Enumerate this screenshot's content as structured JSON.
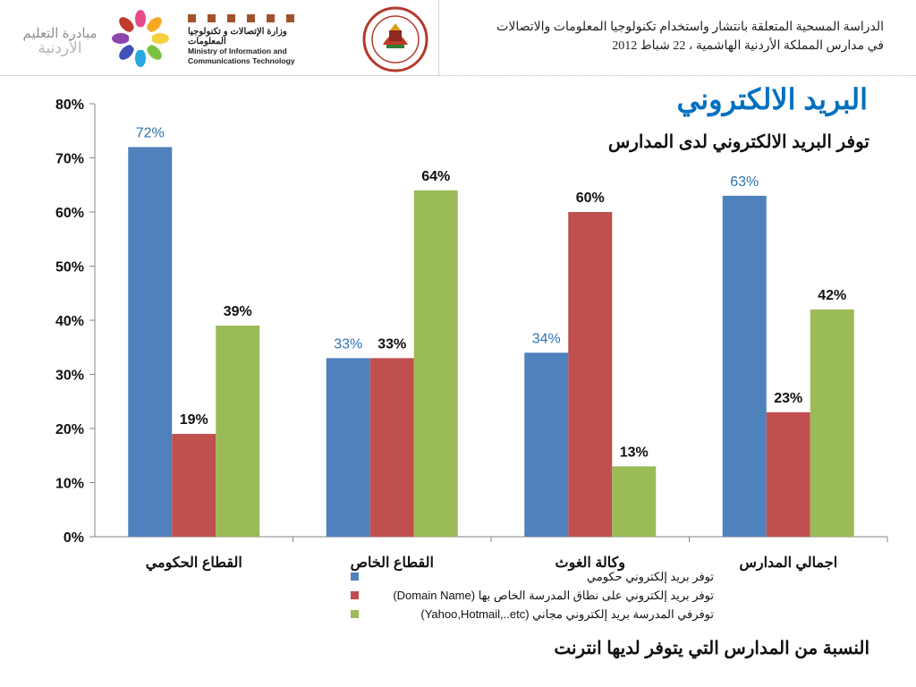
{
  "header": {
    "initiative_line1": "مبادرة التعليم",
    "initiative_line2": "الأردنية",
    "ministry_ar": "وزارة الإتصالات و تكنولوجيا المعلومات",
    "ministry_en_line1": "Ministry of Information and",
    "ministry_en_line2": "Communications Technology",
    "study_line1": "الدراسة المسحية المتعلقة بانتشار واستخدام تكنولوجيا المعلومات والاتصالات",
    "study_line2": "في مدارس المملكة الأردنية الهاشمية ، 22 شباط 2012"
  },
  "slide": {
    "title": "البريد الالكتروني",
    "chart_title": "توفر البريد الالكتروني لدى المدارس",
    "caption": "النسبة من المدارس التي يتوفر لديها انترنت"
  },
  "colors": {
    "blue": "#4f81bd",
    "red": "#c0504d",
    "green": "#9bbb59",
    "title_blue": "#0070c0"
  },
  "chart_data": {
    "type": "bar",
    "categories": [
      "القطاع الحكومي",
      "القطاع الخاص",
      "وكالة الغوث",
      "اجمالي المدارس"
    ],
    "series": [
      {
        "name": "توفر بريد إلكتروني حكومي",
        "values": [
          72,
          33,
          34,
          63
        ],
        "labels": [
          "72%",
          "33%",
          "34%",
          "63%"
        ],
        "color": "#4f81bd"
      },
      {
        "name": "توفر بريد إلكتروني على نطاق المدرسة الخاص بها (Domain Name)",
        "values": [
          19,
          33,
          60,
          23
        ],
        "labels": [
          "19%",
          "33%",
          "60%",
          "23%"
        ],
        "color": "#c0504d"
      },
      {
        "name": "توفرفي المدرسة بريد إلكتروني  مجاني (Yahoo,Hotmail,..etc)",
        "values": [
          39,
          64,
          13,
          42
        ],
        "labels": [
          "39%",
          "64%",
          "13%",
          "42%"
        ],
        "color": "#9bbb59"
      }
    ],
    "ylim": [
      0,
      80
    ],
    "ytick_labels": [
      "0%",
      "10%",
      "20%",
      "30%",
      "40%",
      "50%",
      "60%",
      "70%",
      "80%"
    ],
    "grid": false,
    "legend_position": "bottom"
  }
}
